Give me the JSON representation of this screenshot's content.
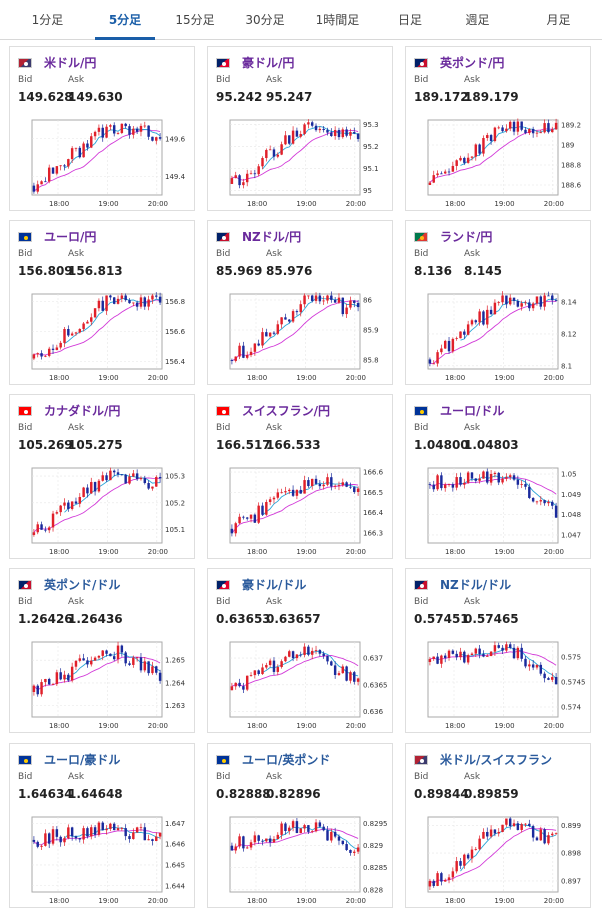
{
  "tabs": [
    {
      "label": "1分足",
      "active": false
    },
    {
      "label": "5分足",
      "active": true
    },
    {
      "label": "15分足",
      "active": false
    },
    {
      "label": "30分足",
      "active": false
    },
    {
      "label": "1時間足",
      "active": false
    },
    {
      "label": "日足",
      "active": false
    },
    {
      "label": "週足",
      "active": false
    },
    {
      "label": "月足",
      "active": false
    }
  ],
  "colors": {
    "bull": "#e0202a",
    "bear": "#1a2a9c",
    "ma_long": "#d23ad8",
    "ma_short": "#2aa6d8",
    "active_tab": "#1a5ea8",
    "pair_link": "#6a2a9c"
  },
  "labels": {
    "bid": "Bid",
    "ask": "Ask"
  },
  "cards": [
    {
      "pair": "米ドル/円",
      "flag": "us-jp-flag-icon",
      "bid": "149.628",
      "ask": "149.630",
      "chart_data": {
        "type": "candlestick",
        "x_ticks": [
          "18:00",
          "19:00",
          "20:00"
        ],
        "y_ticks": [
          "149.6",
          "149.4"
        ],
        "ylim": [
          149.3,
          149.7
        ],
        "start": 149.35,
        "end": 149.628,
        "peak": 149.66
      }
    },
    {
      "pair": "豪ドル/円",
      "flag": "au-jp-flag-icon",
      "bid": "95.242",
      "ask": "95.247",
      "chart_data": {
        "type": "candlestick",
        "x_ticks": [
          "18:00",
          "19:00",
          "20:00"
        ],
        "y_ticks": [
          "95.3",
          "95.2",
          "95.1",
          "95"
        ],
        "ylim": [
          94.98,
          95.32
        ],
        "start": 95.03,
        "end": 95.242,
        "peak": 95.3
      }
    },
    {
      "pair": "英ポンド/円",
      "flag": "gb-jp-flag-icon",
      "bid": "189.172",
      "ask": "189.179",
      "chart_data": {
        "type": "candlestick",
        "x_ticks": [
          "18:00",
          "19:00",
          "20:00"
        ],
        "y_ticks": [
          "189.2",
          "189",
          "188.8",
          "188.6"
        ],
        "ylim": [
          188.5,
          189.25
        ],
        "start": 188.6,
        "end": 189.172,
        "peak": 189.2
      }
    },
    {
      "pair": "ユーロ/円",
      "flag": "eu-jp-flag-icon",
      "bid": "156.809",
      "ask": "156.813",
      "chart_data": {
        "type": "candlestick",
        "x_ticks": [
          "18:00",
          "19:00",
          "20:00"
        ],
        "y_ticks": [
          "156.8",
          "156.6",
          "156.4"
        ],
        "ylim": [
          156.35,
          156.85
        ],
        "start": 156.42,
        "end": 156.809,
        "peak": 156.82
      }
    },
    {
      "pair": "NZドル/円",
      "flag": "nz-jp-flag-icon",
      "bid": "85.969",
      "ask": "85.976",
      "chart_data": {
        "type": "candlestick",
        "x_ticks": [
          "18:00",
          "19:00",
          "20:00"
        ],
        "y_ticks": [
          "86",
          "85.9",
          "85.8"
        ],
        "ylim": [
          85.77,
          86.02
        ],
        "start": 85.8,
        "end": 85.969,
        "peak": 86.0
      }
    },
    {
      "pair": "ランド/円",
      "flag": "za-jp-flag-icon",
      "bid": "8.136",
      "ask": "8.145",
      "chart_data": {
        "type": "candlestick",
        "x_ticks": [
          "18:00",
          "19:00",
          "20:00"
        ],
        "y_ticks": [
          "8.14",
          "8.12",
          "8.1"
        ],
        "ylim": [
          8.098,
          8.145
        ],
        "start": 8.104,
        "end": 8.14,
        "peak": 8.142
      }
    },
    {
      "pair": "カナダドル/円",
      "flag": "ca-jp-flag-icon",
      "bid": "105.269",
      "ask": "105.275",
      "chart_data": {
        "type": "candlestick",
        "x_ticks": [
          "18:00",
          "19:00",
          "20:00"
        ],
        "y_ticks": [
          "105.3",
          "105.2",
          "105.1"
        ],
        "ylim": [
          105.05,
          105.33
        ],
        "start": 105.08,
        "end": 105.269,
        "peak": 105.31
      }
    },
    {
      "pair": "スイスフラン/円",
      "flag": "ch-jp-flag-icon",
      "bid": "166.517",
      "ask": "166.533",
      "chart_data": {
        "type": "candlestick",
        "x_ticks": [
          "18:00",
          "19:00",
          "20:00"
        ],
        "y_ticks": [
          "166.6",
          "166.5",
          "166.4",
          "166.3"
        ],
        "ylim": [
          166.25,
          166.62
        ],
        "start": 166.32,
        "end": 166.517,
        "peak": 166.55
      }
    },
    {
      "pair": "ユーロ/ドル",
      "flag": "eu-us-flag-icon",
      "bid": "1.04800",
      "ask": "1.04803",
      "chart_data": {
        "type": "candlestick",
        "x_ticks": [
          "18:00",
          "19:00",
          "20:00"
        ],
        "y_ticks": [
          "1.05",
          "1.049",
          "1.048",
          "1.047"
        ],
        "ylim": [
          1.0466,
          1.0503
        ],
        "start": 1.0495,
        "end": 1.048,
        "peak": 1.0499
      }
    },
    {
      "pair": "英ポンド/ドル",
      "flag": "gb-us-flag-icon",
      "bid": "1.26426",
      "ask": "1.26436",
      "chart_data": {
        "type": "candlestick",
        "x_ticks": [
          "18:00",
          "19:00",
          "20:00"
        ],
        "y_ticks": [
          "1.265",
          "1.264",
          "1.263"
        ],
        "ylim": [
          1.2625,
          1.2658
        ],
        "start": 1.2636,
        "end": 1.26426,
        "peak": 1.2655
      }
    },
    {
      "pair": "豪ドル/ドル",
      "flag": "au-us-flag-icon",
      "bid": "0.63653",
      "ask": "0.63657",
      "chart_data": {
        "type": "candlestick",
        "x_ticks": [
          "18:00",
          "19:00",
          "20:00"
        ],
        "y_ticks": [
          "0.637",
          "0.6365",
          "0.636"
        ],
        "ylim": [
          0.6359,
          0.6373
        ],
        "start": 0.6364,
        "end": 0.63653,
        "peak": 0.6372
      }
    },
    {
      "pair": "NZドル/ドル",
      "flag": "nz-us-flag-icon",
      "bid": "0.57451",
      "ask": "0.57465",
      "chart_data": {
        "type": "candlestick",
        "x_ticks": [
          "18:00",
          "19:00",
          "20:00"
        ],
        "y_ticks": [
          "0.575",
          "0.5745",
          "0.574"
        ],
        "ylim": [
          0.5738,
          0.5753
        ],
        "start": 0.5749,
        "end": 0.57451,
        "peak": 0.5752
      }
    },
    {
      "pair": "ユーロ/豪ドル",
      "flag": "eu-au-flag-icon",
      "bid": "1.64634",
      "ask": "1.64648",
      "chart_data": {
        "type": "candlestick",
        "x_ticks": [
          "18:00",
          "19:00",
          "20:00"
        ],
        "y_ticks": [
          "1.647",
          "1.646",
          "1.645",
          "1.644"
        ],
        "ylim": [
          1.6437,
          1.6473
        ],
        "start": 1.6462,
        "end": 1.64634,
        "peak": 1.6468
      }
    },
    {
      "pair": "ユーロ/英ポンド",
      "flag": "eu-gb-flag-icon",
      "bid": "0.82888",
      "ask": "0.82896",
      "chart_data": {
        "type": "candlestick",
        "x_ticks": [
          "18:00",
          "19:00",
          "20:00"
        ],
        "y_ticks": [
          "0.8295",
          "0.829",
          "0.8285",
          "0.828"
        ],
        "ylim": [
          0.82795,
          0.82965
        ],
        "start": 0.829,
        "end": 0.82888,
        "peak": 0.8295
      }
    },
    {
      "pair": "米ドル/スイスフラン",
      "flag": "us-ch-flag-icon",
      "bid": "0.89844",
      "ask": "0.89859",
      "chart_data": {
        "type": "candlestick",
        "x_ticks": [
          "18:00",
          "19:00",
          "20:00"
        ],
        "y_ticks": [
          "0.899",
          "0.898",
          "0.897"
        ],
        "ylim": [
          0.8966,
          0.8993
        ],
        "start": 0.8968,
        "end": 0.89844,
        "peak": 0.8992
      }
    }
  ]
}
